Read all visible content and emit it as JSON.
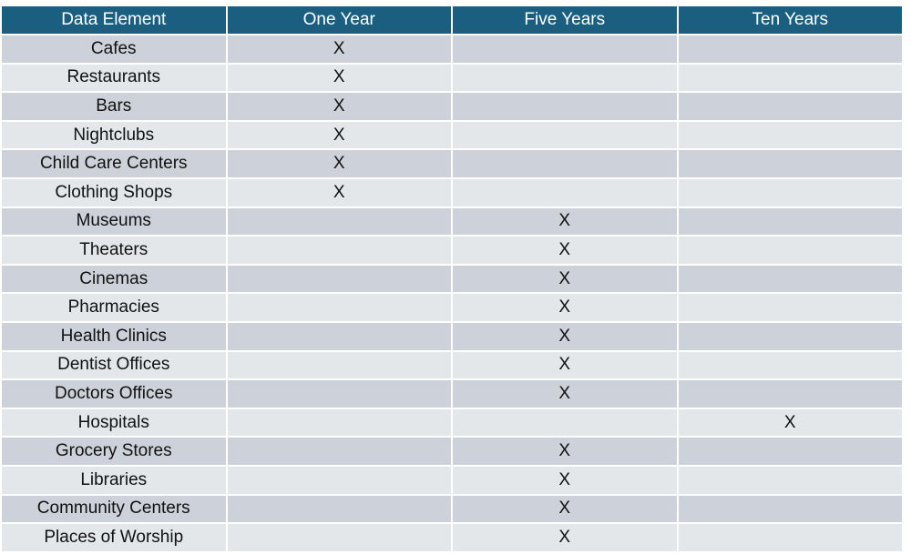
{
  "table": {
    "headers": [
      "Data Element",
      "One Year",
      "Five Years",
      "Ten Years"
    ],
    "rows": [
      [
        "Cafes",
        "X",
        "",
        ""
      ],
      [
        "Restaurants",
        "X",
        "",
        ""
      ],
      [
        "Bars",
        "X",
        "",
        ""
      ],
      [
        "Nightclubs",
        "X",
        "",
        ""
      ],
      [
        "Child Care Centers",
        "X",
        "",
        ""
      ],
      [
        "Clothing Shops",
        "X",
        "",
        ""
      ],
      [
        "Museums",
        "",
        "X",
        ""
      ],
      [
        "Theaters",
        "",
        "X",
        ""
      ],
      [
        "Cinemas",
        "",
        "X",
        ""
      ],
      [
        "Pharmacies",
        "",
        "X",
        ""
      ],
      [
        "Health Clinics",
        "",
        "X",
        ""
      ],
      [
        "Dentist Offices",
        "",
        "X",
        ""
      ],
      [
        "Doctors Offices",
        "",
        "X",
        ""
      ],
      [
        "Hospitals",
        "",
        "",
        "X"
      ],
      [
        "Grocery Stores",
        "",
        "X",
        ""
      ],
      [
        "Libraries",
        "",
        "X",
        ""
      ],
      [
        "Community Centers",
        "",
        "X",
        ""
      ],
      [
        "Places of Worship",
        "",
        "X",
        ""
      ]
    ]
  },
  "colors": {
    "header": "#1b5f80",
    "row_odd": "#cdd1d9",
    "row_even": "#e4e7ea"
  }
}
